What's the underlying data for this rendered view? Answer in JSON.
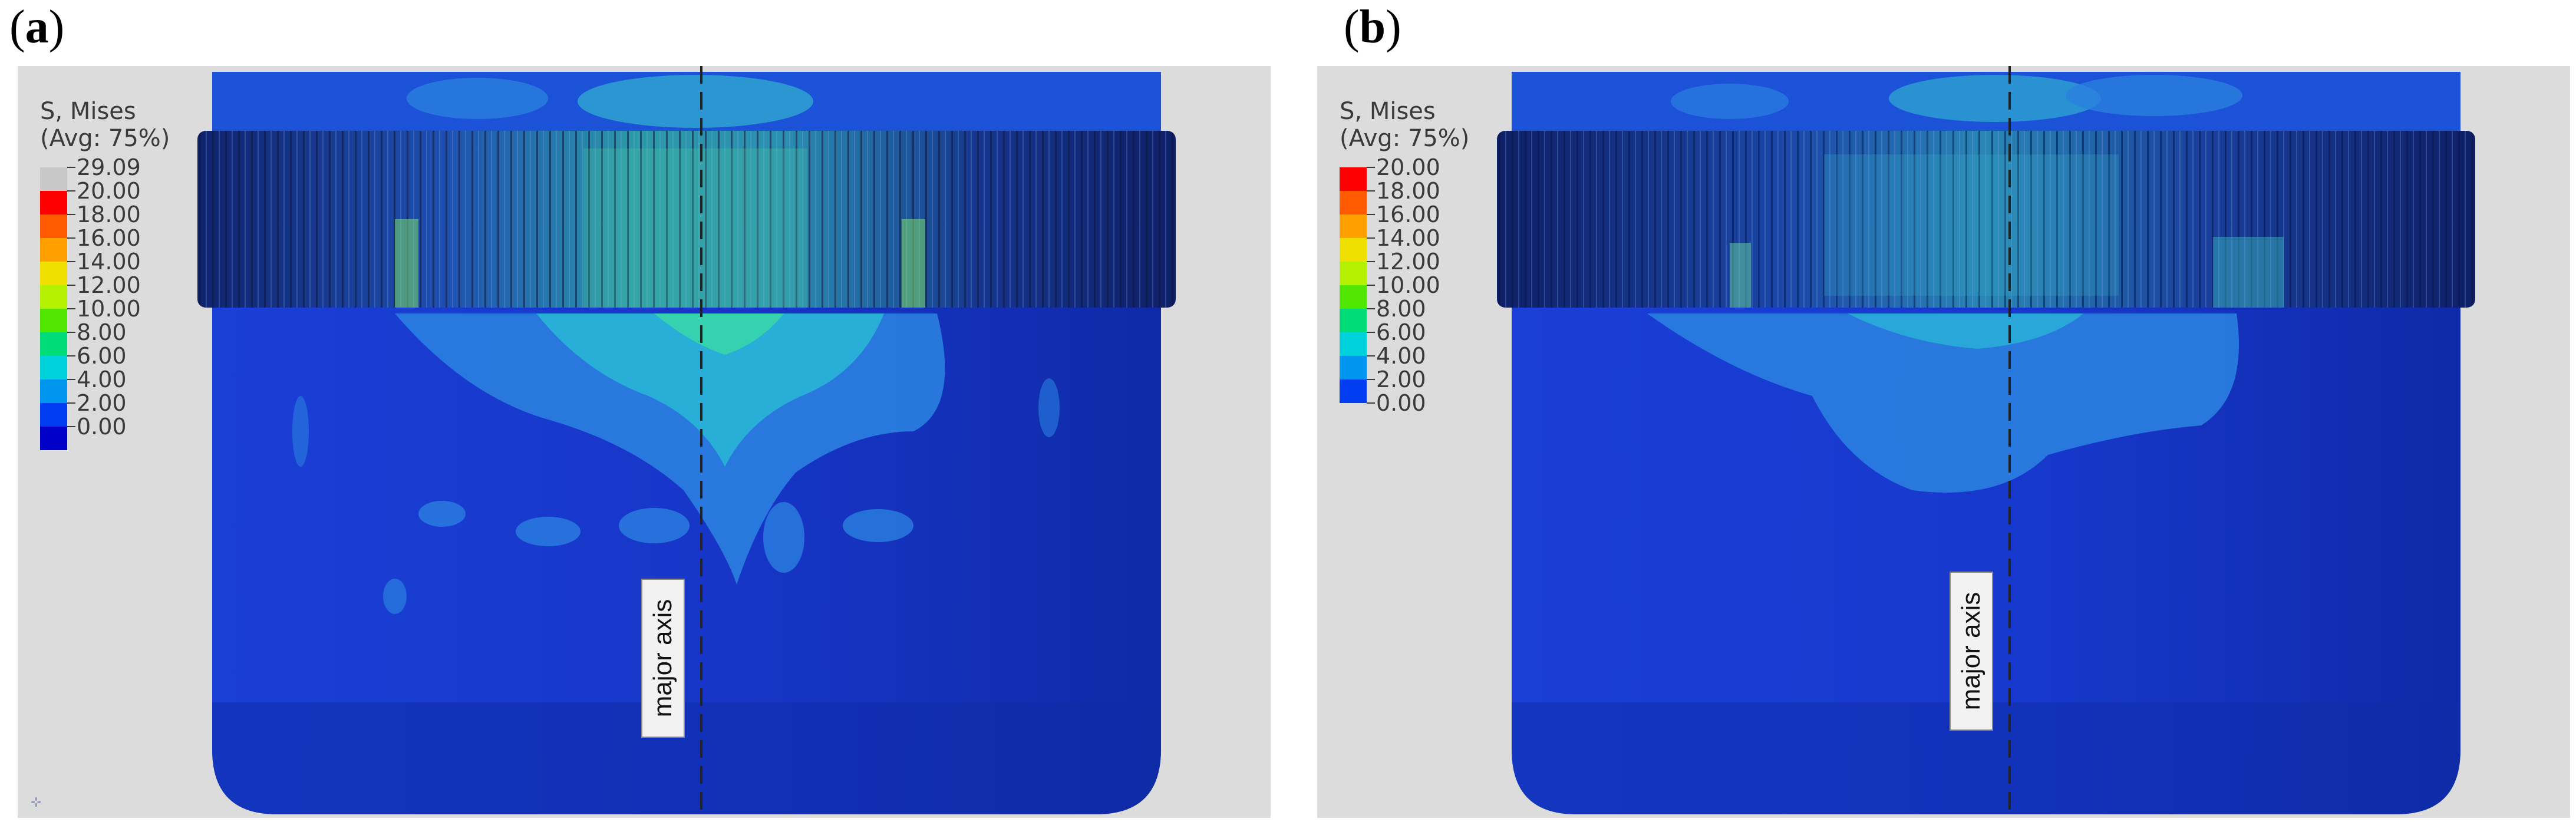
{
  "panels": [
    {
      "id": "a",
      "label_open": "(",
      "label_letter": "a",
      "label_close": ")",
      "legend_title_line1": "S, Mises",
      "legend_title_line2": "(Avg: 75%)",
      "legend_values": [
        "29.09",
        "20.00",
        "18.00",
        "16.00",
        "14.00",
        "12.00",
        "10.00",
        "8.00",
        "6.00",
        "4.00",
        "2.00",
        "0.00"
      ],
      "legend_colors": [
        "#c8c8c8",
        "#ff0000",
        "#ff5a00",
        "#ffa000",
        "#f0e000",
        "#b4f000",
        "#50e600",
        "#00dc78",
        "#00d2dc",
        "#0096f0",
        "#003cf0",
        "#0000c8"
      ],
      "axis_label": "major axis",
      "corner_mark": "⊹"
    },
    {
      "id": "b",
      "label_open": "(",
      "label_letter": "b",
      "label_close": ")",
      "legend_title_line1": "S, Mises",
      "legend_title_line2": "(Avg: 75%)",
      "legend_values": [
        "20.00",
        "18.00",
        "16.00",
        "14.00",
        "12.00",
        "10.00",
        "8.00",
        "6.00",
        "4.00",
        "2.00",
        "0.00"
      ],
      "legend_colors": [
        "#ff0000",
        "#ff5a00",
        "#ffa000",
        "#f0e000",
        "#b4f000",
        "#50e600",
        "#00dc78",
        "#00d2dc",
        "#0096f0",
        "#003cf0"
      ],
      "axis_label": "major axis"
    }
  ]
}
